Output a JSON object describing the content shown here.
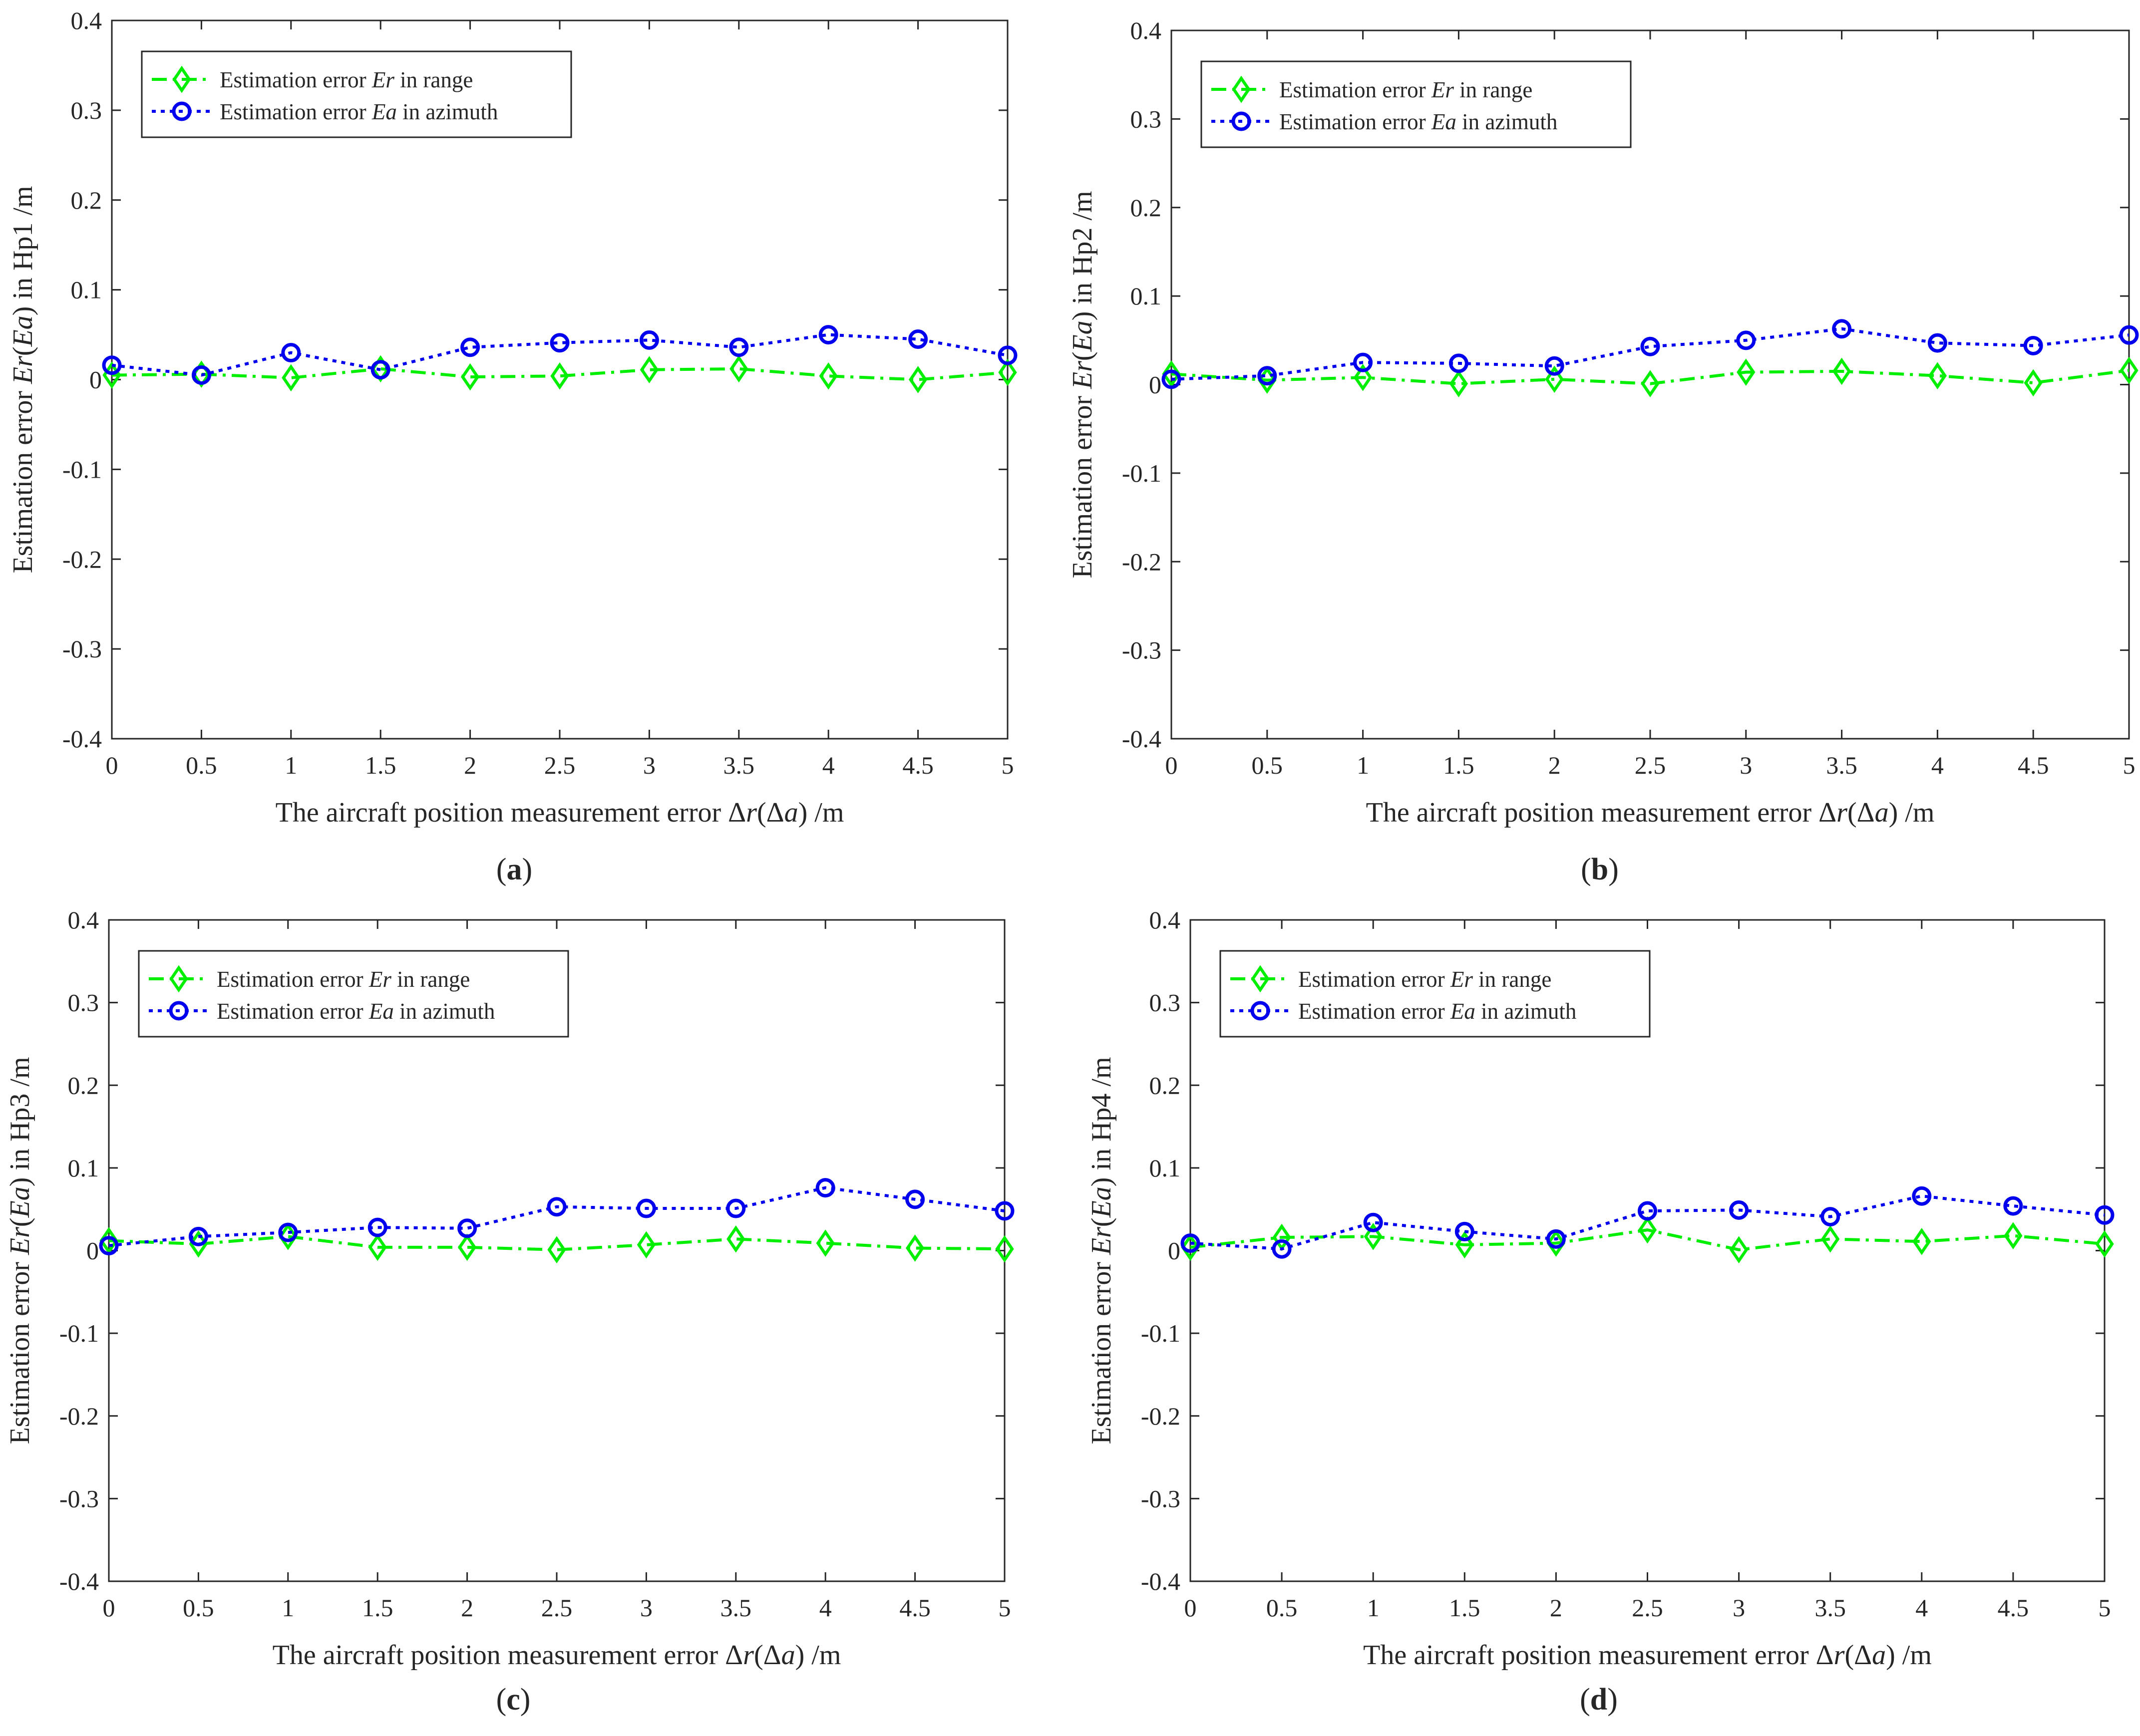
{
  "colors": {
    "range": "#00ee00",
    "azimuth": "#0000ee",
    "axis": "#262626",
    "background": "#ffffff"
  },
  "shared": {
    "xlabel": {
      "before": "The aircraft position measurement error ",
      "d1": "Δ",
      "v1": "r",
      "mid": "(",
      "d2": "Δ",
      "v2": "a",
      "after": ") /m"
    },
    "ylabel": {
      "before": "Estimation error ",
      "v1": "Er",
      "mid": "(",
      "v2": "Ea",
      "after": ") in "
    },
    "legend": [
      {
        "before": "Estimation error ",
        "var": "Er",
        "after": " in range"
      },
      {
        "before": "Estimation error ",
        "var": "Ea",
        "after": " in azimuth"
      }
    ],
    "xticks": [
      "0",
      "0.5",
      "1",
      "1.5",
      "2",
      "2.5",
      "3",
      "3.5",
      "4",
      "4.5",
      "5"
    ],
    "yticks": [
      "-0.4",
      "-0.3",
      "-0.2",
      "-0.1",
      "0",
      "0.1",
      "0.2",
      "0.3",
      "0.4"
    ],
    "caption_open": "(",
    "caption_close": ")"
  },
  "chart_data": [
    {
      "type": "line",
      "panel": "a",
      "hp": "Hp1 /m",
      "xlim": [
        0,
        5
      ],
      "ylim": [
        -0.4,
        0.4
      ],
      "legend_position": "top-left",
      "x": [
        0,
        0.5,
        1,
        1.5,
        2,
        2.5,
        3,
        3.5,
        4,
        4.5,
        5
      ],
      "series": [
        {
          "name": "Estimation error Er in range",
          "color": "#00ee00",
          "marker": "diamond",
          "linestyle": "dash-dot",
          "values": [
            0.005,
            0.006,
            0.002,
            0.012,
            0.003,
            0.004,
            0.011,
            0.012,
            0.004,
            0.0,
            0.008
          ]
        },
        {
          "name": "Estimation error Ea in azimuth",
          "color": "#0000ee",
          "marker": "circle",
          "linestyle": "dotted",
          "values": [
            0.016,
            0.005,
            0.03,
            0.011,
            0.036,
            0.041,
            0.044,
            0.036,
            0.05,
            0.045,
            0.027
          ]
        }
      ]
    },
    {
      "type": "line",
      "panel": "b",
      "hp": "Hp2 /m",
      "xlim": [
        0,
        5
      ],
      "ylim": [
        -0.4,
        0.4
      ],
      "legend_position": "top-left",
      "x": [
        0,
        0.5,
        1,
        1.5,
        2,
        2.5,
        3,
        3.5,
        4,
        4.5,
        5
      ],
      "series": [
        {
          "name": "Estimation error Er in range",
          "color": "#00ee00",
          "marker": "diamond",
          "linestyle": "dash-dot",
          "values": [
            0.012,
            0.005,
            0.008,
            0.001,
            0.006,
            0.001,
            0.014,
            0.015,
            0.01,
            0.002,
            0.016
          ]
        },
        {
          "name": "Estimation error Ea in azimuth",
          "color": "#0000ee",
          "marker": "circle",
          "linestyle": "dotted",
          "values": [
            0.006,
            0.01,
            0.025,
            0.024,
            0.021,
            0.043,
            0.05,
            0.063,
            0.047,
            0.044,
            0.056
          ]
        }
      ]
    },
    {
      "type": "line",
      "panel": "c",
      "hp": "Hp3 /m",
      "xlim": [
        0,
        5
      ],
      "ylim": [
        -0.4,
        0.4
      ],
      "legend_position": "top-left",
      "x": [
        0,
        0.5,
        1,
        1.5,
        2,
        2.5,
        3,
        3.5,
        4,
        4.5,
        5
      ],
      "series": [
        {
          "name": "Estimation error Er in range",
          "color": "#00ee00",
          "marker": "diamond",
          "linestyle": "dash-dot",
          "values": [
            0.012,
            0.008,
            0.017,
            0.004,
            0.004,
            0.001,
            0.007,
            0.014,
            0.009,
            0.003,
            0.002
          ]
        },
        {
          "name": "Estimation error Ea in azimuth",
          "color": "#0000ee",
          "marker": "circle",
          "linestyle": "dotted",
          "values": [
            0.006,
            0.017,
            0.022,
            0.028,
            0.027,
            0.053,
            0.051,
            0.051,
            0.076,
            0.062,
            0.048
          ]
        }
      ]
    },
    {
      "type": "line",
      "panel": "d",
      "hp": "Hp4 /m",
      "xlim": [
        0,
        5
      ],
      "ylim": [
        -0.4,
        0.4
      ],
      "legend_position": "top-left",
      "x": [
        0,
        0.5,
        1,
        1.5,
        2,
        2.5,
        3,
        3.5,
        4,
        4.5,
        5
      ],
      "series": [
        {
          "name": "Estimation error Er in range",
          "color": "#00ee00",
          "marker": "diamond",
          "linestyle": "dash-dot",
          "values": [
            0.004,
            0.016,
            0.017,
            0.007,
            0.009,
            0.025,
            0.001,
            0.014,
            0.011,
            0.018,
            0.008
          ]
        },
        {
          "name": "Estimation error Ea in azimuth",
          "color": "#0000ee",
          "marker": "circle",
          "linestyle": "dotted",
          "values": [
            0.009,
            0.002,
            0.034,
            0.023,
            0.014,
            0.048,
            0.049,
            0.041,
            0.066,
            0.054,
            0.043
          ]
        }
      ]
    }
  ]
}
